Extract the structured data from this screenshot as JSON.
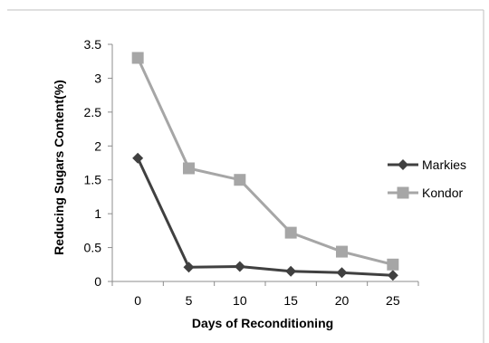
{
  "chart_data": {
    "type": "line",
    "title": "",
    "xlabel": "Days of Reconditioning",
    "ylabel": "Reducing Sugars Content(%)",
    "x": [
      "0",
      "5",
      "10",
      "15",
      "20",
      "25"
    ],
    "ylim": [
      0,
      3.5
    ],
    "yticks": [
      "0",
      "0.5",
      "1",
      "1.5",
      "2",
      "2.5",
      "3",
      "3.5"
    ],
    "grid": false,
    "legend": "right",
    "series": [
      {
        "name": "Markies",
        "values": [
          1.82,
          0.21,
          0.22,
          0.15,
          0.13,
          0.09
        ],
        "color": "#404040",
        "marker": "diamond"
      },
      {
        "name": "Kondor",
        "values": [
          3.3,
          1.67,
          1.5,
          0.72,
          0.44,
          0.25
        ],
        "color": "#a6a6a6",
        "marker": "square"
      }
    ]
  }
}
